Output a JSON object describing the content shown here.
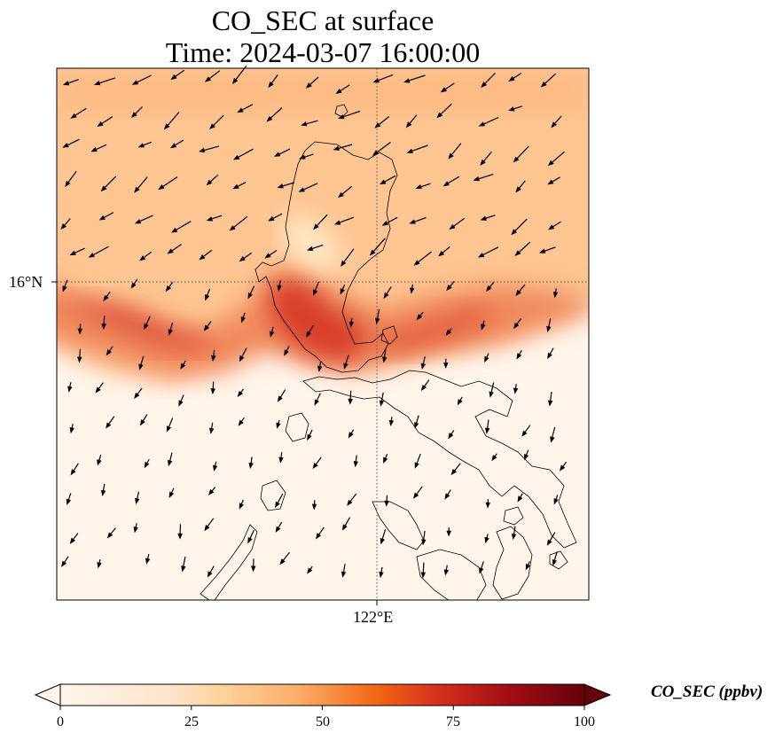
{
  "title": {
    "line1": "CO_SEC at surface",
    "line2": "Time: 2024-03-07 16:00:00"
  },
  "map": {
    "latitude_gridline": "16°N",
    "longitude_gridline": "122°E",
    "variable": "CO_SEC",
    "level": "surface",
    "colormap": [
      "#fff5eb",
      "#fdd49e",
      "#fdae6b",
      "#f16913",
      "#d7301f",
      "#a50f15",
      "#67000d"
    ],
    "coastline_color": "#000000",
    "gridline_style": "dotted"
  },
  "colorbar": {
    "label": "CO_SEC (ppbv)",
    "ticks": [
      "0",
      "25",
      "50",
      "75",
      "100"
    ],
    "min": 0,
    "max": 100,
    "extend": "both"
  }
}
